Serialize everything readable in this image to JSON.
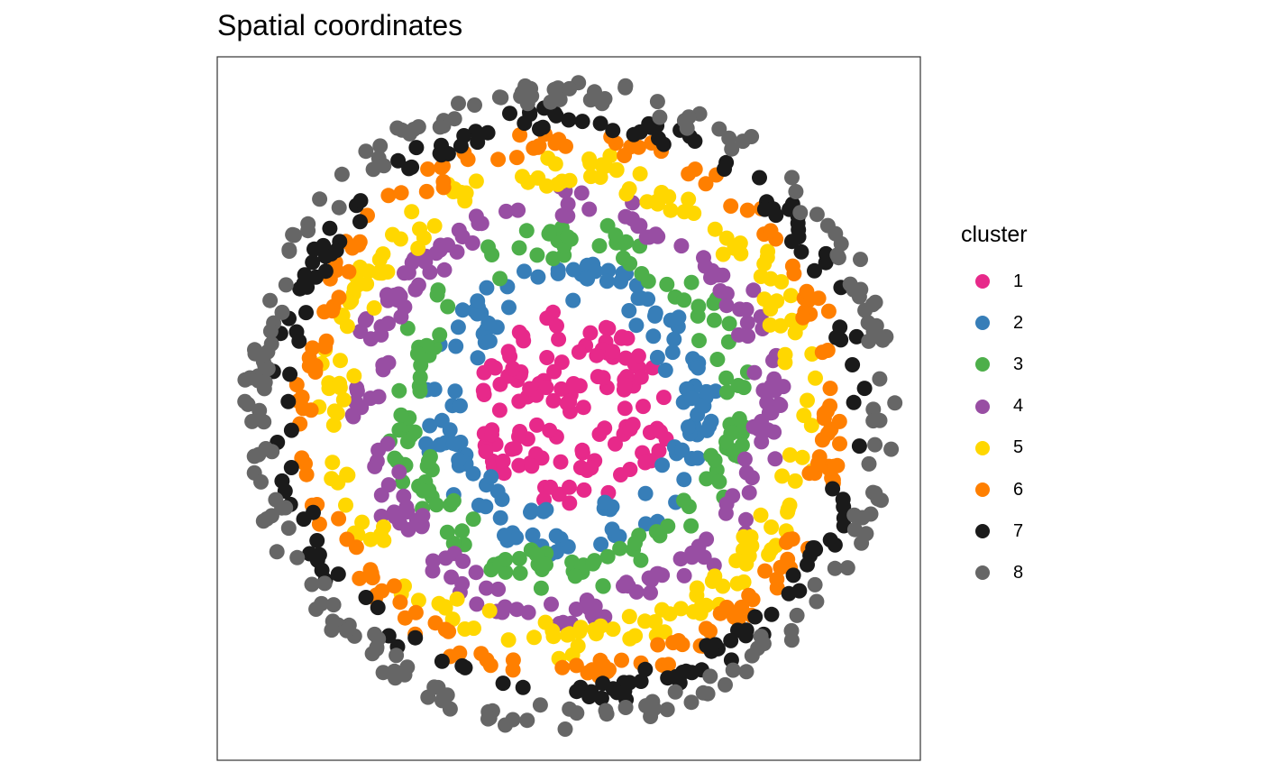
{
  "chart_data": {
    "type": "scatter",
    "title": "Spatial coordinates",
    "xlabel": "",
    "ylabel": "",
    "axes_visible": false,
    "grid": false,
    "panel_border": true,
    "legend_position": "right",
    "legend_title": "cluster",
    "series": [
      {
        "name": "1",
        "color": "#E7298A",
        "ring": [
          0.0,
          0.31
        ]
      },
      {
        "name": "2",
        "color": "#377EB8",
        "ring": [
          0.31,
          0.45
        ]
      },
      {
        "name": "3",
        "color": "#4DAF4A",
        "ring": [
          0.45,
          0.56
        ]
      },
      {
        "name": "4",
        "color": "#984EA3",
        "ring": [
          0.56,
          0.67
        ]
      },
      {
        "name": "5",
        "color": "#FFD700",
        "ring": [
          0.67,
          0.77
        ]
      },
      {
        "name": "6",
        "color": "#FF7F00",
        "ring": [
          0.77,
          0.85
        ]
      },
      {
        "name": "7",
        "color": "#1A1A1A",
        "ring": [
          0.85,
          0.92
        ]
      },
      {
        "name": "8",
        "color": "#666666",
        "ring": [
          0.92,
          1.0
        ]
      }
    ]
  }
}
